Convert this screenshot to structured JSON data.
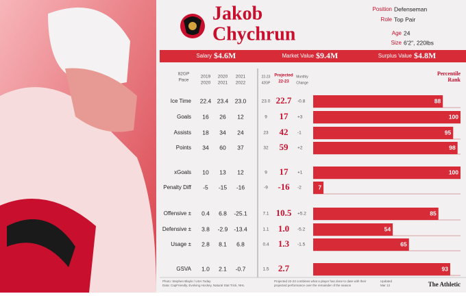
{
  "header": {
    "first_name": "Jakob",
    "last_name": "Chychrun"
  },
  "info": [
    {
      "label": "Position",
      "value": "Defenseman"
    },
    {
      "label": "Role",
      "value": "Top Pair"
    },
    {
      "label": "Age",
      "value": "24"
    },
    {
      "label": "Size",
      "value": "6'2\", 220lbs"
    }
  ],
  "salary": [
    {
      "label": "Salary",
      "value": "$4.6M"
    },
    {
      "label": "Market Value",
      "value": "$9.4M"
    },
    {
      "label": "Surplus Value",
      "value": "$4.8M"
    }
  ],
  "columns": {
    "pace": [
      "82GP",
      "Pace"
    ],
    "seasons": [
      [
        "2019",
        "2020"
      ],
      [
        "2020",
        "2021"
      ],
      [
        "2021",
        "2022"
      ]
    ],
    "current": [
      "22-23",
      "42GP"
    ],
    "projected": [
      "Projected",
      "22-23"
    ],
    "change": [
      "Monthly",
      "Change"
    ],
    "percentile": [
      "Percentile",
      "Rank"
    ]
  },
  "rows": [
    {
      "label": "Ice Time",
      "seasons": [
        "22.4",
        "23.4",
        "23.0"
      ],
      "current": "23.0",
      "projected": "22.7",
      "change": "-0.8",
      "percentile": 88
    },
    {
      "label": "Goals",
      "seasons": [
        "16",
        "26",
        "12"
      ],
      "current": "9",
      "projected": "17",
      "change": "+3",
      "percentile": 100
    },
    {
      "label": "Assists",
      "seasons": [
        "18",
        "34",
        "24"
      ],
      "current": "23",
      "projected": "42",
      "change": "-1",
      "percentile": 95
    },
    {
      "label": "Points",
      "seasons": [
        "34",
        "60",
        "37"
      ],
      "current": "32",
      "projected": "59",
      "change": "+2",
      "percentile": 98
    },
    {
      "label": "xGoals",
      "seasons": [
        "10",
        "13",
        "12"
      ],
      "current": "9",
      "projected": "17",
      "change": "+1",
      "percentile": 100
    },
    {
      "label": "Penalty Diff",
      "seasons": [
        "-5",
        "-15",
        "-16"
      ],
      "current": "-9",
      "projected": "-16",
      "change": "-2",
      "percentile": 7
    },
    {
      "label": "Offensive ±",
      "seasons": [
        "0.4",
        "6.8",
        "-25.1"
      ],
      "current": "7.1",
      "projected": "10.5",
      "change": "+5.2",
      "percentile": 85
    },
    {
      "label": "Defensive ±",
      "seasons": [
        "3.8",
        "-2.9",
        "-13.4"
      ],
      "current": "1.1",
      "projected": "1.0",
      "change": "-5.2",
      "percentile": 54
    },
    {
      "label": "Usage ±",
      "seasons": [
        "2.8",
        "8.1",
        "6.8"
      ],
      "current": "0.4",
      "projected": "1.3",
      "change": "-1.5",
      "percentile": 65
    },
    {
      "label": "GSVA",
      "seasons": [
        "1.0",
        "2.1",
        "-0.7"
      ],
      "current": "1.5",
      "projected": "2.7",
      "percentile": 93
    }
  ],
  "footer": {
    "credit": [
      "Photo: Stephen Blaylo / USA Today",
      "Data: CapFriendly, Evolving Hockey, Natural Stat Trick, NHL"
    ],
    "note": [
      "Projected 22-23 combines what a player has done to date with their",
      "projected performance over the remainder of the season"
    ],
    "updated": [
      "Updated",
      "Mar 13"
    ],
    "brand": "The Athletic"
  }
}
